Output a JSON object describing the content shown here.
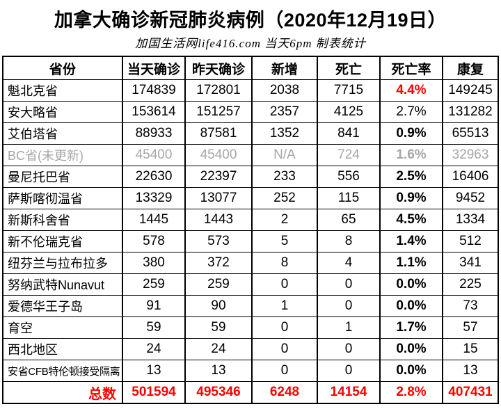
{
  "title": "加拿大确诊新冠肺炎病例（2020年12月19日）",
  "subtitle": "加国生活网life416.com 当天6pm 制表统计",
  "colors": {
    "accent_red": "#ff0000",
    "muted_gray": "#a6a6a6",
    "border_black": "#000000",
    "background": "#ffffff"
  },
  "chart_data": {
    "type": "table",
    "title": "加拿大确诊新冠肺炎病例（2020年12月19日）",
    "subtitle": "加国生活网life416.com 当天6pm 制表统计",
    "columns": [
      "省份",
      "当天确诊",
      "昨天确诊",
      "新增",
      "死亡",
      "死亡率",
      "康复"
    ],
    "rows": [
      {
        "province": "魁北克省",
        "today": "174839",
        "yesterday": "172801",
        "added": "2038",
        "deaths": "7715",
        "rate": "4.4%",
        "recovered": "149245",
        "rate_style": "red"
      },
      {
        "province": "安大略省",
        "today": "153614",
        "yesterday": "151257",
        "added": "2357",
        "deaths": "4125",
        "rate": "2.7%",
        "recovered": "131282",
        "rate_style": "regular"
      },
      {
        "province": "艾伯塔省",
        "today": "88933",
        "yesterday": "87581",
        "added": "1352",
        "deaths": "841",
        "rate": "0.9%",
        "recovered": "65513"
      },
      {
        "province": "BC省(未更新)",
        "today": "45400",
        "yesterday": "45400",
        "added": "N/A",
        "deaths": "724",
        "rate": "1.6%",
        "recovered": "32963",
        "muted": true
      },
      {
        "province": "曼尼托巴省",
        "today": "22630",
        "yesterday": "22397",
        "added": "233",
        "deaths": "556",
        "rate": "2.5%",
        "recovered": "16406"
      },
      {
        "province": "萨斯喀彻温省",
        "today": "13329",
        "yesterday": "13077",
        "added": "252",
        "deaths": "115",
        "rate": "0.9%",
        "recovered": "9452"
      },
      {
        "province": "新斯科舍省",
        "today": "1445",
        "yesterday": "1443",
        "added": "2",
        "deaths": "65",
        "rate": "4.5%",
        "recovered": "1334"
      },
      {
        "province": "新不伦瑞克省",
        "today": "578",
        "yesterday": "573",
        "added": "5",
        "deaths": "8",
        "rate": "1.4%",
        "recovered": "512"
      },
      {
        "province": "纽芬兰与拉布拉多",
        "today": "380",
        "yesterday": "372",
        "added": "8",
        "deaths": "4",
        "rate": "1.1%",
        "recovered": "341"
      },
      {
        "province": "努纳武特Nunavut",
        "today": "259",
        "yesterday": "259",
        "added": "0",
        "deaths": "0",
        "rate": "0.0%",
        "recovered": "225"
      },
      {
        "province": "爱德华王子岛",
        "today": "91",
        "yesterday": "90",
        "added": "1",
        "deaths": "0",
        "rate": "0.0%",
        "recovered": "73"
      },
      {
        "province": "育空",
        "today": "59",
        "yesterday": "59",
        "added": "0",
        "deaths": "1",
        "rate": "1.7%",
        "recovered": "57"
      },
      {
        "province": "西北地区",
        "today": "24",
        "yesterday": "24",
        "added": "0",
        "deaths": "0",
        "rate": "0.0%",
        "recovered": "15"
      },
      {
        "province": "安省CFB特伦顿接受隔离",
        "today": "13",
        "yesterday": "13",
        "added": "0",
        "deaths": "0",
        "rate": "0.0%",
        "recovered": "13"
      }
    ],
    "total": {
      "province": "总数",
      "today": "501594",
      "yesterday": "495346",
      "added": "6248",
      "deaths": "14154",
      "rate": "2.8%",
      "recovered": "407431"
    }
  }
}
